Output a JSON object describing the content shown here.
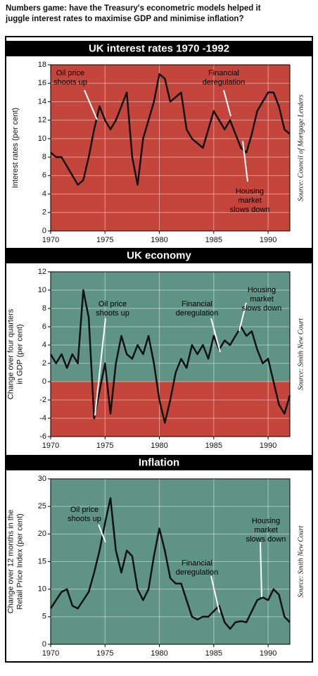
{
  "title": [
    "Numbers game: have the Treasury's econometric models helped it",
    "juggle interest rates to maximise GDP and minimise inflation?"
  ],
  "chart_data": [
    {
      "type": "line",
      "title": "UK interest rates 1970 -1992",
      "ylabel": [
        "Interest rates (per cent)"
      ],
      "source": "Source: Council of Mortgage Lenders",
      "background": "#c4453b",
      "line_color": "#111111",
      "grid": true,
      "xlim": [
        1970,
        1992
      ],
      "xticks": [
        1970,
        1975,
        1980,
        1985,
        1990
      ],
      "ylim": [
        0,
        18
      ],
      "yticks": [
        0,
        2,
        4,
        6,
        8,
        10,
        12,
        14,
        16,
        18
      ],
      "annotations": [
        {
          "lines": [
            "Oil price",
            "shoots up"
          ]
        },
        {
          "lines": [
            "Financial",
            "deregulation"
          ]
        },
        {
          "lines": [
            "Housing",
            "market",
            "slows down"
          ]
        }
      ],
      "x": [
        1970,
        1970.5,
        1971,
        1971.5,
        1972,
        1972.5,
        1973,
        1973.5,
        1974,
        1974.5,
        1975,
        1975.5,
        1976,
        1976.5,
        1977,
        1977.5,
        1978,
        1978.5,
        1979,
        1979.5,
        1980,
        1980.5,
        1981,
        1981.5,
        1982,
        1982.5,
        1983,
        1983.5,
        1984,
        1984.5,
        1985,
        1985.5,
        1986,
        1986.5,
        1987,
        1987.5,
        1988,
        1988.5,
        1989,
        1989.5,
        1990,
        1990.5,
        1991,
        1991.5,
        1992
      ],
      "values": [
        8.5,
        8,
        8,
        7,
        6,
        5,
        5.5,
        8,
        11,
        13.5,
        12,
        11,
        12,
        13.5,
        15,
        8,
        5,
        10,
        12,
        14,
        17,
        16.5,
        14,
        14.5,
        15,
        11,
        10,
        9.5,
        9,
        11,
        13,
        12,
        11,
        12,
        10.5,
        9,
        8.5,
        10.5,
        13,
        14,
        15,
        15,
        13.5,
        11,
        10.5
      ]
    },
    {
      "type": "line",
      "title": "UK economy",
      "ylabel": [
        "Change over four quarters",
        "in GDP (per cent)"
      ],
      "source": "Source: Smith New Court",
      "background": "#5f9484",
      "negative_background": "#c4453b",
      "line_color": "#111111",
      "grid": true,
      "xlim": [
        1970,
        1992
      ],
      "xticks": [
        1970,
        1975,
        1980,
        1985,
        1990
      ],
      "ylim": [
        -6,
        12
      ],
      "yticks": [
        -6,
        -4,
        -2,
        0,
        2,
        4,
        6,
        8,
        10,
        12
      ],
      "annotations": [
        {
          "lines": [
            "Oil price",
            "shoots up"
          ]
        },
        {
          "lines": [
            "Financial",
            "deregulation"
          ]
        },
        {
          "lines": [
            "Housing",
            "market",
            "slows down"
          ]
        }
      ],
      "x": [
        1970,
        1970.5,
        1971,
        1971.5,
        1972,
        1972.5,
        1973,
        1973.5,
        1974,
        1974.5,
        1975,
        1975.5,
        1976,
        1976.5,
        1977,
        1977.5,
        1978,
        1978.5,
        1979,
        1979.5,
        1980,
        1980.5,
        1981,
        1981.5,
        1982,
        1982.5,
        1983,
        1983.5,
        1984,
        1984.5,
        1985,
        1985.5,
        1986,
        1986.5,
        1987,
        1987.5,
        1988,
        1988.5,
        1989,
        1989.5,
        1990,
        1990.5,
        1991,
        1991.5,
        1992
      ],
      "values": [
        3,
        2,
        3,
        1.5,
        3,
        2,
        10,
        7,
        -4,
        -1,
        2,
        -3.5,
        2,
        5,
        3,
        2.5,
        4,
        3,
        5,
        2,
        -2,
        -4.5,
        -2,
        1,
        2.5,
        1.5,
        4,
        3,
        4,
        2.5,
        5,
        3.5,
        4.5,
        4,
        5,
        6,
        5,
        5.5,
        3.5,
        2,
        2.5,
        0,
        -2.5,
        -3.5,
        -1.5
      ]
    },
    {
      "type": "line",
      "title": "Inflation",
      "ylabel": [
        "Change over 12 months in the",
        "Retail Price Index (per cent)"
      ],
      "source": "Source: Smith New Court",
      "background": "#5f9484",
      "line_color": "#111111",
      "grid": true,
      "xlim": [
        1970,
        1992
      ],
      "xticks": [
        1970,
        1975,
        1980,
        1985,
        1990
      ],
      "ylim": [
        0,
        30
      ],
      "yticks": [
        0,
        5,
        10,
        15,
        20,
        25,
        30
      ],
      "annotations": [
        {
          "lines": [
            "Oil price",
            "shoots up"
          ]
        },
        {
          "lines": [
            "Financial",
            "deregulation"
          ]
        },
        {
          "lines": [
            "Housing",
            "market",
            "slows down"
          ]
        }
      ],
      "x": [
        1970,
        1970.5,
        1971,
        1971.5,
        1972,
        1972.5,
        1973,
        1973.5,
        1974,
        1974.5,
        1975,
        1975.5,
        1976,
        1976.5,
        1977,
        1977.5,
        1978,
        1978.5,
        1979,
        1979.5,
        1980,
        1980.5,
        1981,
        1981.5,
        1982,
        1982.5,
        1983,
        1983.5,
        1984,
        1984.5,
        1985,
        1985.5,
        1986,
        1986.5,
        1987,
        1987.5,
        1988,
        1988.5,
        1989,
        1989.5,
        1990,
        1990.5,
        1991,
        1991.5,
        1992
      ],
      "values": [
        6.5,
        8,
        9.5,
        10,
        7,
        6.5,
        8,
        9.5,
        13,
        17,
        22,
        26.5,
        17,
        13,
        17,
        16,
        10,
        8,
        10,
        16,
        21,
        17,
        12,
        11,
        11,
        8,
        5,
        4.5,
        5,
        5,
        6,
        7,
        4,
        2.8,
        4,
        4.2,
        4,
        6,
        8,
        8.5,
        8,
        10,
        9,
        5,
        4
      ]
    }
  ]
}
